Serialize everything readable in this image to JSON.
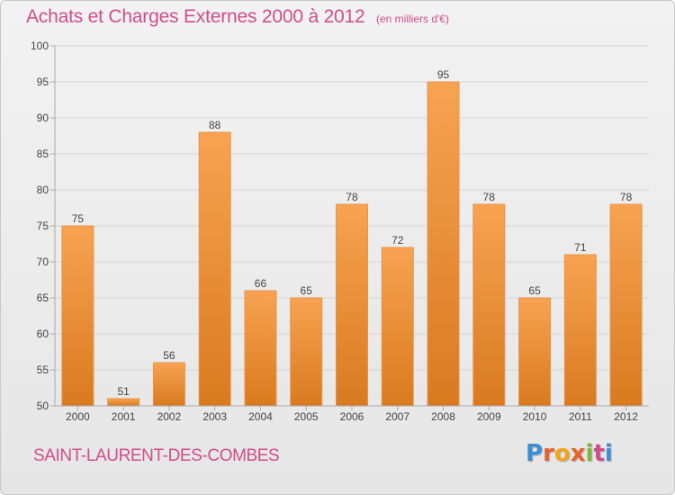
{
  "header": {
    "title": "Achats et Charges Externes 2000 à 2012",
    "subtitle": "(en milliers d'€)"
  },
  "footer": {
    "commune": "SAINT-LAURENT-DES-COMBES",
    "logo_text": "Proxiti"
  },
  "colors": {
    "title": "#d04d8c",
    "bar_light": "#f7a352",
    "bar_dark": "#d97a1f",
    "grid": "#d4d4d4",
    "axis": "#aaaaaa",
    "text": "#444444"
  },
  "chart_data": {
    "type": "bar",
    "title": "Achats et Charges Externes 2000 à 2012",
    "subtitle": "(en milliers d'€)",
    "categories": [
      "2000",
      "2001",
      "2002",
      "2003",
      "2004",
      "2005",
      "2006",
      "2007",
      "2008",
      "2009",
      "2010",
      "2011",
      "2012"
    ],
    "values": [
      75,
      51,
      56,
      88,
      66,
      65,
      78,
      72,
      95,
      78,
      65,
      71,
      78
    ],
    "ylim": [
      50,
      100
    ],
    "yticks": [
      50,
      55,
      60,
      65,
      70,
      75,
      80,
      85,
      90,
      95,
      100
    ],
    "grid": true,
    "data_labels": true
  }
}
